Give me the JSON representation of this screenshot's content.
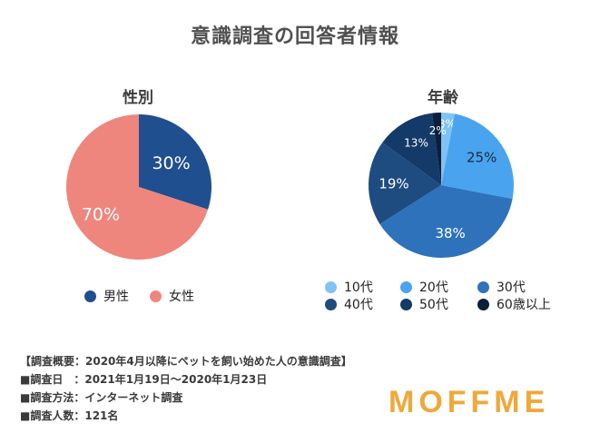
{
  "title": "意識調査の回答者情報",
  "chart_data": [
    {
      "type": "pie",
      "title": "性別",
      "labels": [
        "男性",
        "女性"
      ],
      "values": [
        30,
        70
      ],
      "value_labels": [
        "30%",
        "70%"
      ],
      "colors": [
        "#1f4f8f",
        "#ee867e"
      ],
      "label_colors": [
        "#ffffff",
        "#ffffff"
      ],
      "legend_position": "bottom"
    },
    {
      "type": "pie",
      "title": "年齢",
      "labels": [
        "10代",
        "20代",
        "30代",
        "40代",
        "50代",
        "60歳以上"
      ],
      "values": [
        3,
        25,
        38,
        19,
        13,
        2
      ],
      "value_labels": [
        "3%",
        "25%",
        "38%",
        "19%",
        "13%",
        "2%"
      ],
      "colors": [
        "#7ec3f4",
        "#4aa3ee",
        "#2e72bc",
        "#1e4b80",
        "#143a6a",
        "#0b1e3a"
      ],
      "label_colors": [
        "#ffffff",
        "#1a2a40",
        "#ffffff",
        "#ffffff",
        "#ffffff",
        "#ffffff"
      ],
      "legend_position": "bottom"
    }
  ],
  "survey_info": [
    "【調査概要：2020年4月以降にペットを飼い始めた人の意識調査】",
    "■調査日　：2021年1月19日～2020年1月23日",
    "■調査方法：インターネット調査",
    "■調査人数：121名"
  ],
  "logo": "MOFFME"
}
